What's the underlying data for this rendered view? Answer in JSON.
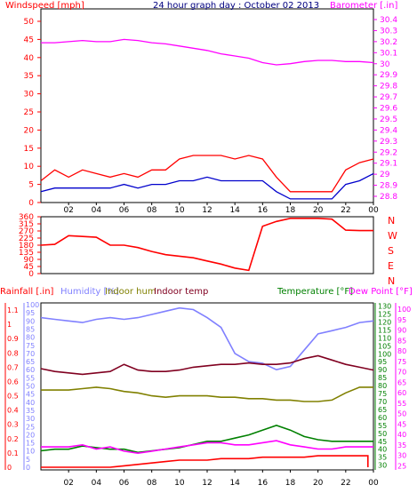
{
  "chart_data": [
    {
      "type": "line",
      "title": "24 hour graph day : October 02 2013",
      "left_label": "Windspeed [mph]",
      "right_label": "Barometer [.in]",
      "x_ticks": [
        "02",
        "04",
        "06",
        "08",
        "10",
        "12",
        "14",
        "16",
        "18",
        "20",
        "22",
        "00"
      ],
      "y_left_ticks": [
        0,
        5,
        10,
        15,
        20,
        25,
        30,
        35,
        40,
        45,
        50
      ],
      "y_left_lim": [
        0,
        50
      ],
      "y_right_ticks": [
        "28.8",
        "28.9",
        "29",
        "29.1",
        "29.2",
        "29.3",
        "29.4",
        "29.5",
        "29.6",
        "29.7",
        "29.8",
        "29.9",
        "30",
        "30.1",
        "30.2",
        "30.3",
        "30.4"
      ],
      "y_right_lim": [
        28.8,
        30.4
      ],
      "series": [
        {
          "name": "Barometer",
          "axis": "right",
          "color": "#ff00ff",
          "x": [
            0,
            1,
            2,
            3,
            4,
            5,
            6,
            7,
            8,
            9,
            10,
            11,
            12,
            13,
            14,
            15,
            16,
            17,
            18,
            19,
            20,
            21,
            22,
            23,
            24
          ],
          "values": [
            30.19,
            30.19,
            30.2,
            30.21,
            30.2,
            30.2,
            30.22,
            30.21,
            30.19,
            30.18,
            30.16,
            30.14,
            30.12,
            30.09,
            30.07,
            30.05,
            30.01,
            29.99,
            30,
            30.02,
            30.03,
            30.03,
            30.02,
            30.02,
            30.01
          ]
        },
        {
          "name": "Gust",
          "axis": "left",
          "color": "#ff0000",
          "x": [
            0,
            1,
            2,
            3,
            4,
            5,
            6,
            7,
            8,
            9,
            10,
            11,
            12,
            13,
            14,
            15,
            16,
            17,
            18,
            19,
            20,
            21,
            22,
            23,
            24
          ],
          "values": [
            6,
            9,
            7,
            9,
            8,
            7,
            8,
            7,
            9,
            9,
            12,
            13,
            13,
            13,
            12,
            13,
            12,
            7,
            3,
            3,
            3,
            3,
            9,
            11,
            12
          ]
        },
        {
          "name": "Average",
          "axis": "left",
          "color": "#0000cc",
          "x": [
            0,
            1,
            2,
            3,
            4,
            5,
            6,
            7,
            8,
            9,
            10,
            11,
            12,
            13,
            14,
            15,
            16,
            17,
            18,
            19,
            20,
            21,
            22,
            23,
            24
          ],
          "values": [
            3,
            4,
            4,
            4,
            4,
            4,
            5,
            4,
            5,
            5,
            6,
            6,
            7,
            6,
            6,
            6,
            6,
            3,
            1,
            1,
            1,
            1,
            5,
            6,
            8
          ]
        }
      ]
    },
    {
      "type": "line",
      "left_ticks": [
        0,
        45,
        90,
        135,
        180,
        225,
        270,
        315,
        360
      ],
      "y_lim": [
        0,
        360
      ],
      "right_labels": [
        "N",
        "W",
        "S",
        "E",
        "N"
      ],
      "x_ticks": [
        "02",
        "04",
        "06",
        "08",
        "10",
        "12",
        "14",
        "16",
        "18",
        "20",
        "22",
        "00"
      ],
      "series": [
        {
          "name": "Wind direction",
          "color": "#ff0000",
          "x": [
            0,
            1,
            2,
            3,
            4,
            5,
            6,
            7,
            8,
            9,
            10,
            11,
            12,
            13,
            14,
            15,
            16,
            17,
            18,
            19,
            20,
            21,
            22,
            23,
            24
          ],
          "values": [
            180,
            185,
            240,
            235,
            230,
            180,
            180,
            165,
            140,
            120,
            110,
            100,
            80,
            60,
            35,
            20,
            300,
            330,
            350,
            350,
            350,
            345,
            275,
            272,
            272
          ]
        }
      ]
    },
    {
      "type": "line",
      "left_labels": [
        "Rainfall [.in]",
        "Humidity [%]",
        "Indoor hum",
        "Indoor temp"
      ],
      "right_labels": [
        "Temperature [°F]",
        "Dew Point [°F]"
      ],
      "rain_ticks": [
        "0",
        "0.1",
        "0.2",
        "0.3",
        "0.4",
        "0.5",
        "0.6",
        "0.7",
        "0.8",
        "0.9",
        "1",
        "1.1"
      ],
      "rain_lim": [
        0,
        1.15
      ],
      "humidity_ticks": [
        0,
        5,
        10,
        15,
        20,
        25,
        30,
        35,
        40,
        45,
        50,
        55,
        60,
        65,
        70,
        75,
        80,
        85,
        90,
        95,
        100
      ],
      "humidity_lim": [
        0,
        100
      ],
      "temp_ticks_left": [
        30,
        35,
        40,
        45,
        50,
        55,
        60,
        65,
        70,
        75,
        80,
        85,
        90,
        95,
        100,
        105,
        110,
        115,
        120,
        125,
        130
      ],
      "dew_ticks_right": [
        25,
        30,
        35,
        40,
        45,
        50,
        55,
        60,
        65,
        70,
        75,
        80,
        85,
        90,
        95,
        100
      ],
      "temp_lim": [
        27,
        132
      ],
      "dew_lim": [
        23,
        103
      ],
      "x_ticks": [
        "02",
        "04",
        "06",
        "08",
        "10",
        "12",
        "14",
        "16",
        "18",
        "20",
        "22",
        "00"
      ],
      "series": [
        {
          "name": "Humidity",
          "axis": "humidity",
          "color": "#8080ff",
          "x": [
            0,
            1,
            2,
            3,
            4,
            5,
            6,
            7,
            8,
            9,
            10,
            11,
            12,
            13,
            14,
            15,
            16,
            17,
            18,
            19,
            20,
            21,
            22,
            23,
            24
          ],
          "values": [
            92,
            91,
            90,
            89,
            91,
            92,
            91,
            92,
            94,
            96,
            98,
            97,
            92,
            86,
            70,
            65,
            64,
            60,
            62,
            72,
            82,
            84,
            86,
            89,
            90
          ]
        },
        {
          "name": "Indoor temp",
          "axis": "rain",
          "color": "#800020",
          "x": [
            0,
            1,
            2,
            3,
            4,
            5,
            6,
            7,
            8,
            9,
            10,
            11,
            12,
            13,
            14,
            15,
            16,
            17,
            18,
            19,
            20,
            21,
            22,
            23,
            24
          ],
          "values": [
            0.69,
            0.67,
            0.66,
            0.65,
            0.66,
            0.67,
            0.72,
            0.68,
            0.67,
            0.67,
            0.68,
            0.7,
            0.71,
            0.72,
            0.72,
            0.73,
            0.72,
            0.72,
            0.73,
            0.76,
            0.78,
            0.75,
            0.72,
            0.7,
            0.68
          ]
        },
        {
          "name": "Indoor hum",
          "axis": "rain",
          "color": "#808000",
          "x": [
            0,
            1,
            2,
            3,
            4,
            5,
            6,
            7,
            8,
            9,
            10,
            11,
            12,
            13,
            14,
            15,
            16,
            17,
            18,
            19,
            20,
            21,
            22,
            23,
            24
          ],
          "values": [
            0.54,
            0.54,
            0.54,
            0.55,
            0.56,
            0.55,
            0.53,
            0.52,
            0.5,
            0.49,
            0.5,
            0.5,
            0.5,
            0.49,
            0.49,
            0.48,
            0.48,
            0.47,
            0.47,
            0.46,
            0.46,
            0.47,
            0.52,
            0.56,
            0.56
          ]
        },
        {
          "name": "Temperature",
          "axis": "temp",
          "color": "#008000",
          "x": [
            0,
            1,
            2,
            3,
            4,
            5,
            6,
            7,
            8,
            9,
            10,
            11,
            12,
            13,
            14,
            15,
            16,
            17,
            18,
            19,
            20,
            21,
            22,
            23,
            24
          ],
          "values": [
            39,
            40,
            40,
            42,
            41,
            40,
            40,
            38,
            39,
            40,
            41,
            43,
            45,
            45,
            47,
            49,
            52,
            55,
            52,
            48,
            46,
            45,
            45,
            45,
            45
          ]
        },
        {
          "name": "Dew Point",
          "axis": "dew",
          "color": "#ff00ff",
          "x": [
            0,
            1,
            2,
            3,
            4,
            5,
            6,
            7,
            8,
            9,
            10,
            11,
            12,
            13,
            14,
            15,
            16,
            17,
            18,
            19,
            20,
            21,
            22,
            23,
            24
          ],
          "values": [
            34,
            34,
            34,
            35,
            33,
            34,
            32,
            31,
            32,
            33,
            34,
            35,
            36,
            36,
            35,
            35,
            36,
            37,
            35,
            34,
            33,
            33,
            34,
            34,
            34
          ]
        },
        {
          "name": "Rainfall",
          "axis": "rain",
          "color": "#ff0000",
          "x": [
            0,
            1,
            2,
            3,
            4,
            5,
            6,
            7,
            8,
            9,
            10,
            11,
            12,
            13,
            14,
            15,
            16,
            17,
            18,
            19,
            20,
            21,
            22,
            23,
            23.6,
            23.6
          ],
          "values": [
            0,
            0,
            0,
            0,
            0,
            0,
            0.01,
            0.02,
            0.03,
            0.04,
            0.05,
            0.05,
            0.05,
            0.06,
            0.06,
            0.06,
            0.07,
            0.07,
            0.07,
            0.07,
            0.08,
            0.08,
            0.08,
            0.08,
            0.08,
            0
          ]
        }
      ]
    }
  ]
}
